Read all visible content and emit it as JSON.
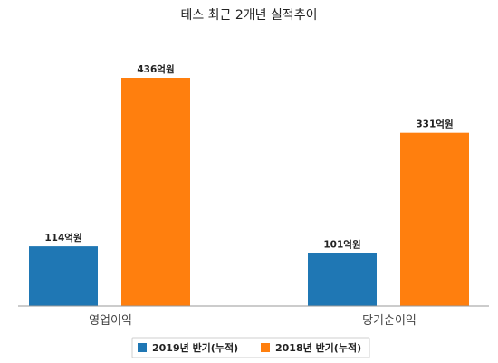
{
  "chart_data": {
    "type": "bar",
    "title": "테스 최근 2개년 실적추이",
    "categories": [
      "영업이익",
      "당기순이익"
    ],
    "series": [
      {
        "name": "2019년 반기(누적)",
        "values": [
          114,
          101
        ],
        "labels": [
          "114억원",
          "101억원"
        ],
        "color": "#1f77b4"
      },
      {
        "name": "2018년 반기(누적)",
        "values": [
          436,
          331
        ],
        "labels": [
          "436억원",
          "331억원"
        ],
        "color": "#ff7f0e"
      }
    ],
    "ylim": [
      0,
      500
    ],
    "unit": "억원",
    "grid": false,
    "legend_position": "bottom"
  }
}
